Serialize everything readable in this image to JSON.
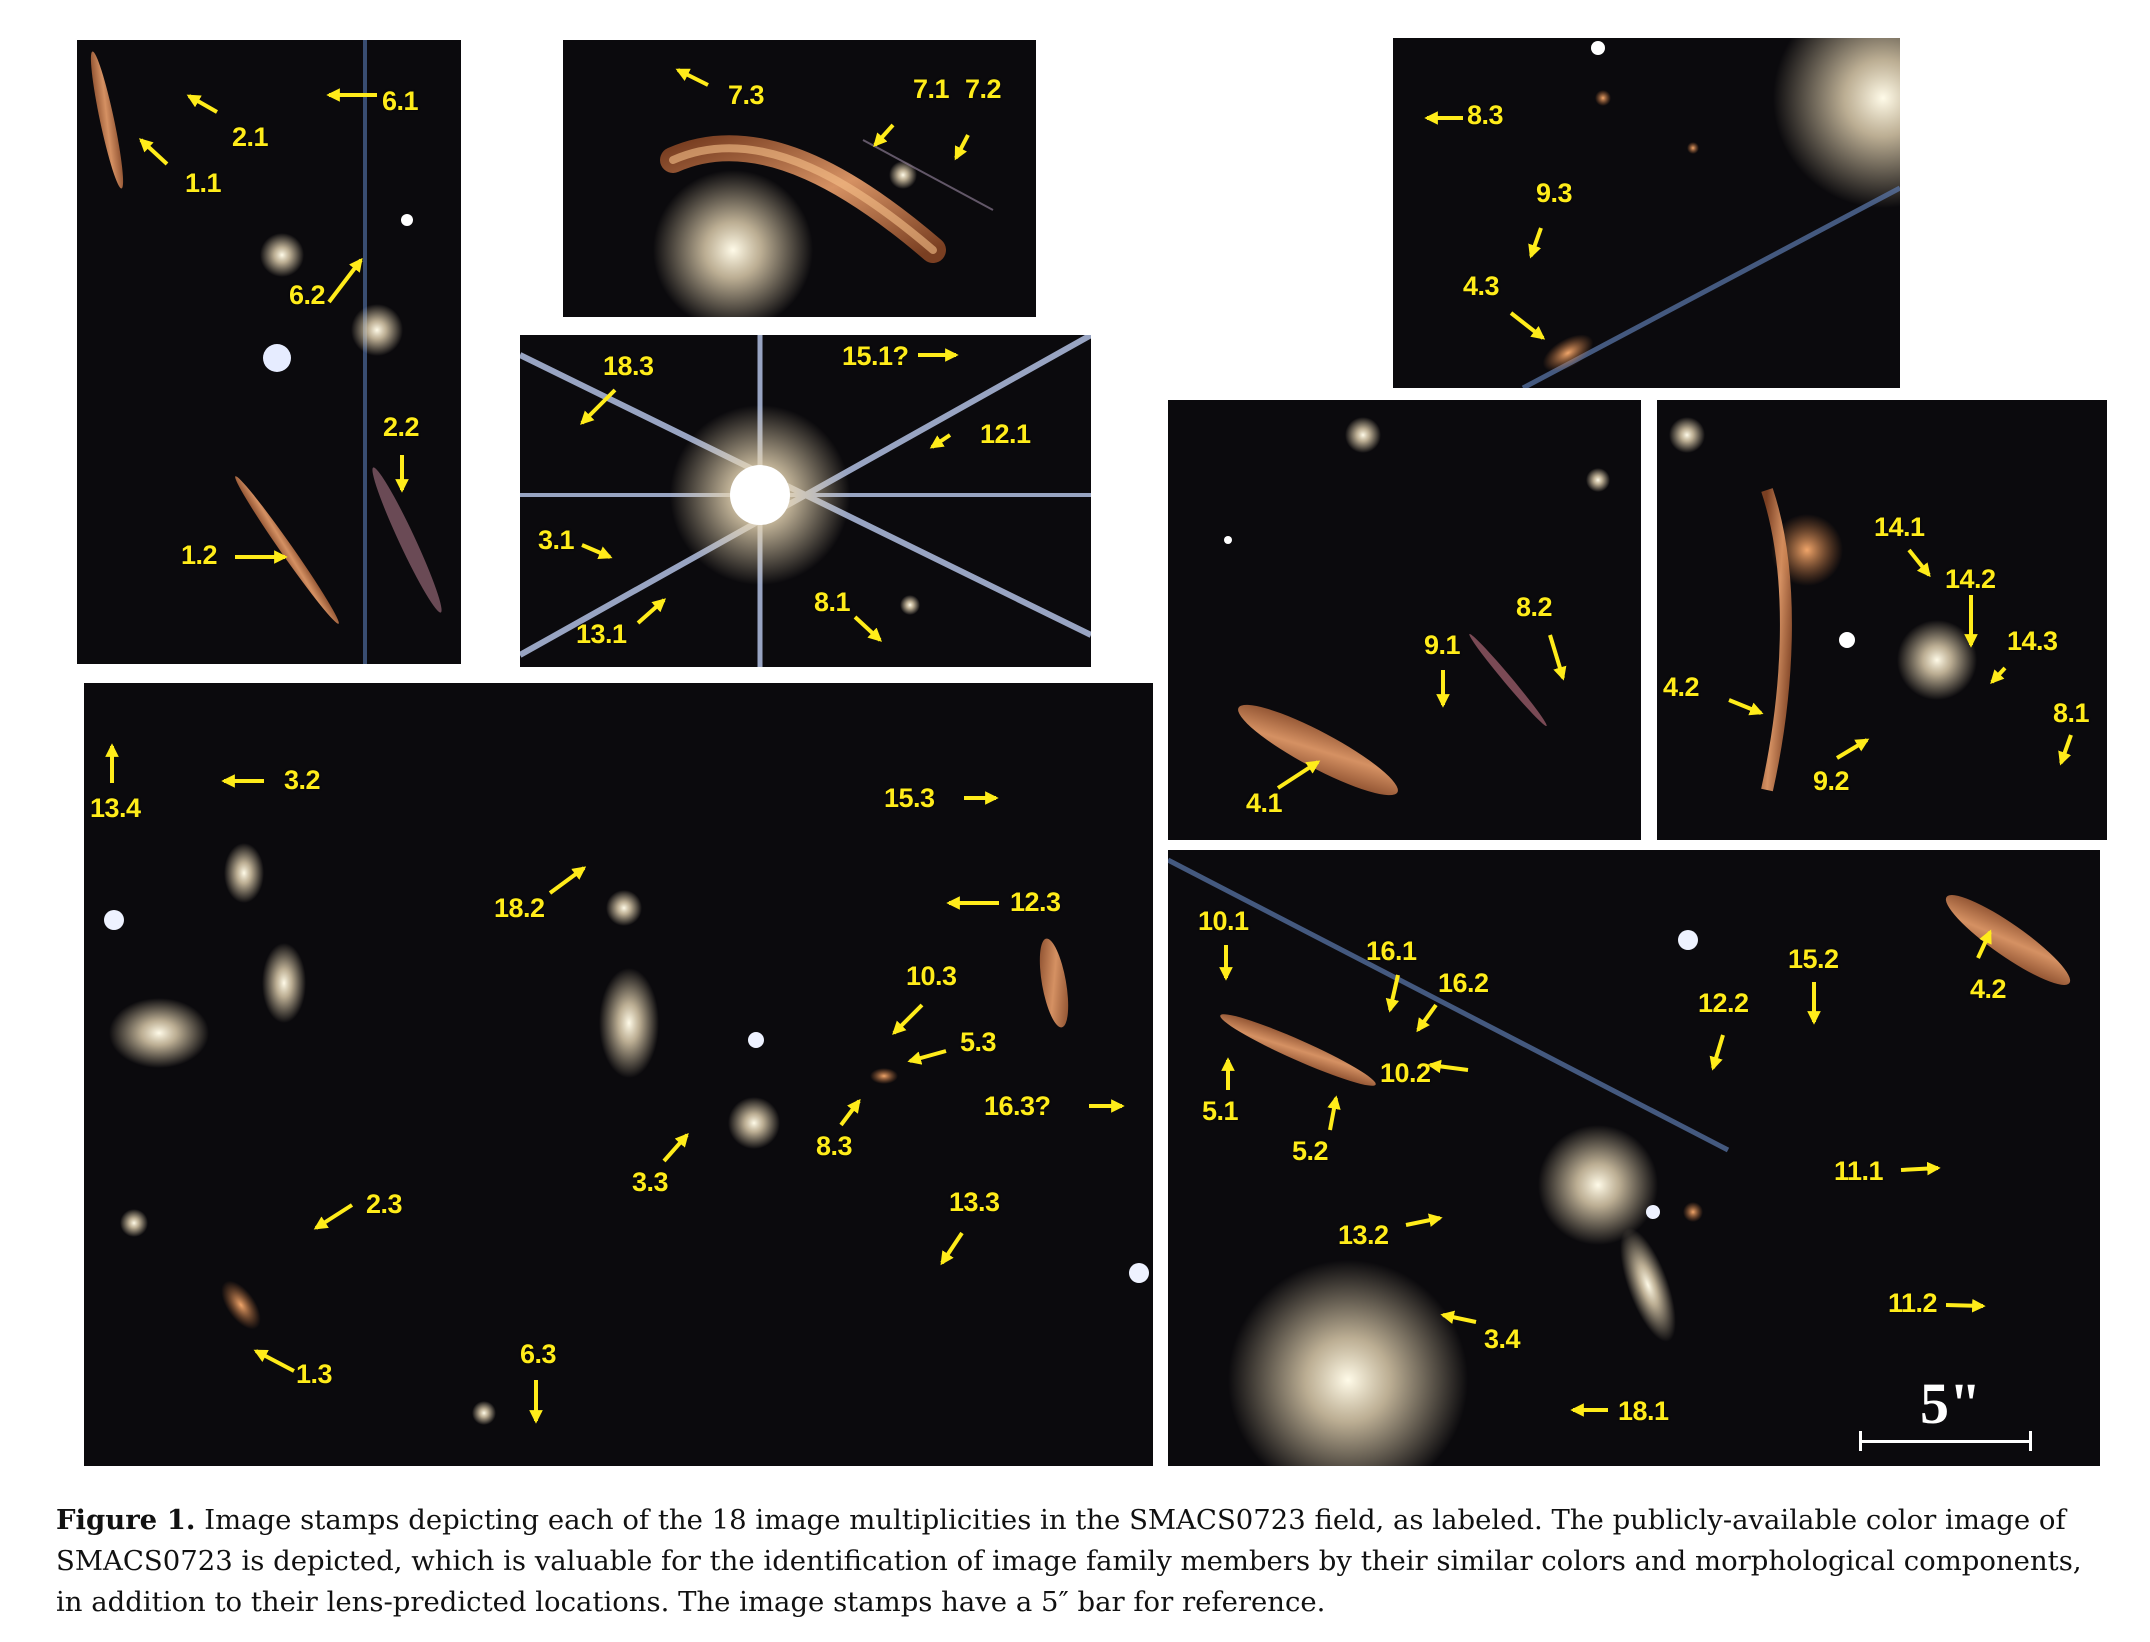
{
  "figure": {
    "caption_label": "Figure 1.",
    "caption_text": "Image stamps depicting each of the 18 image multiplicities in the SMACS0723 field, as labeled. The publicly-available color image of SMACS0723 is depicted, which is valuable for the identification of image family members by their similar colors and morphological components, in addition to their lens-predicted locations. The image stamps have a 5″ bar for reference."
  },
  "scale_bar": {
    "label": "5\""
  },
  "stamps": {
    "s1": [
      "2.1",
      "6.1",
      "1.1",
      "6.2",
      "2.2",
      "1.2"
    ],
    "s2": [
      "7.3",
      "7.1",
      "7.2"
    ],
    "s3": [
      "18.3",
      "15.1?",
      "12.1",
      "3.1",
      "13.1",
      "8.1"
    ],
    "s4": [
      "8.3",
      "9.3",
      "4.3"
    ],
    "s5": [
      "8.2",
      "9.1",
      "4.1"
    ],
    "s6": [
      "14.1",
      "14.2",
      "14.3",
      "4.2",
      "8.1",
      "9.2"
    ],
    "s7": [
      "13.4",
      "3.2",
      "15.3",
      "18.2",
      "12.3",
      "10.3",
      "5.3",
      "16.3?",
      "8.3",
      "3.3",
      "2.3",
      "13.3",
      "1.3",
      "6.3"
    ],
    "s8": [
      "10.1",
      "16.1",
      "16.2",
      "15.2",
      "12.2",
      "4.2",
      "10.2",
      "5.1",
      "5.2",
      "11.1",
      "13.2",
      "3.4",
      "11.2",
      "18.1"
    ]
  },
  "colors": {
    "label": "#ffec1a",
    "sky": "#0b0a0d",
    "arc": "#c97a45"
  }
}
